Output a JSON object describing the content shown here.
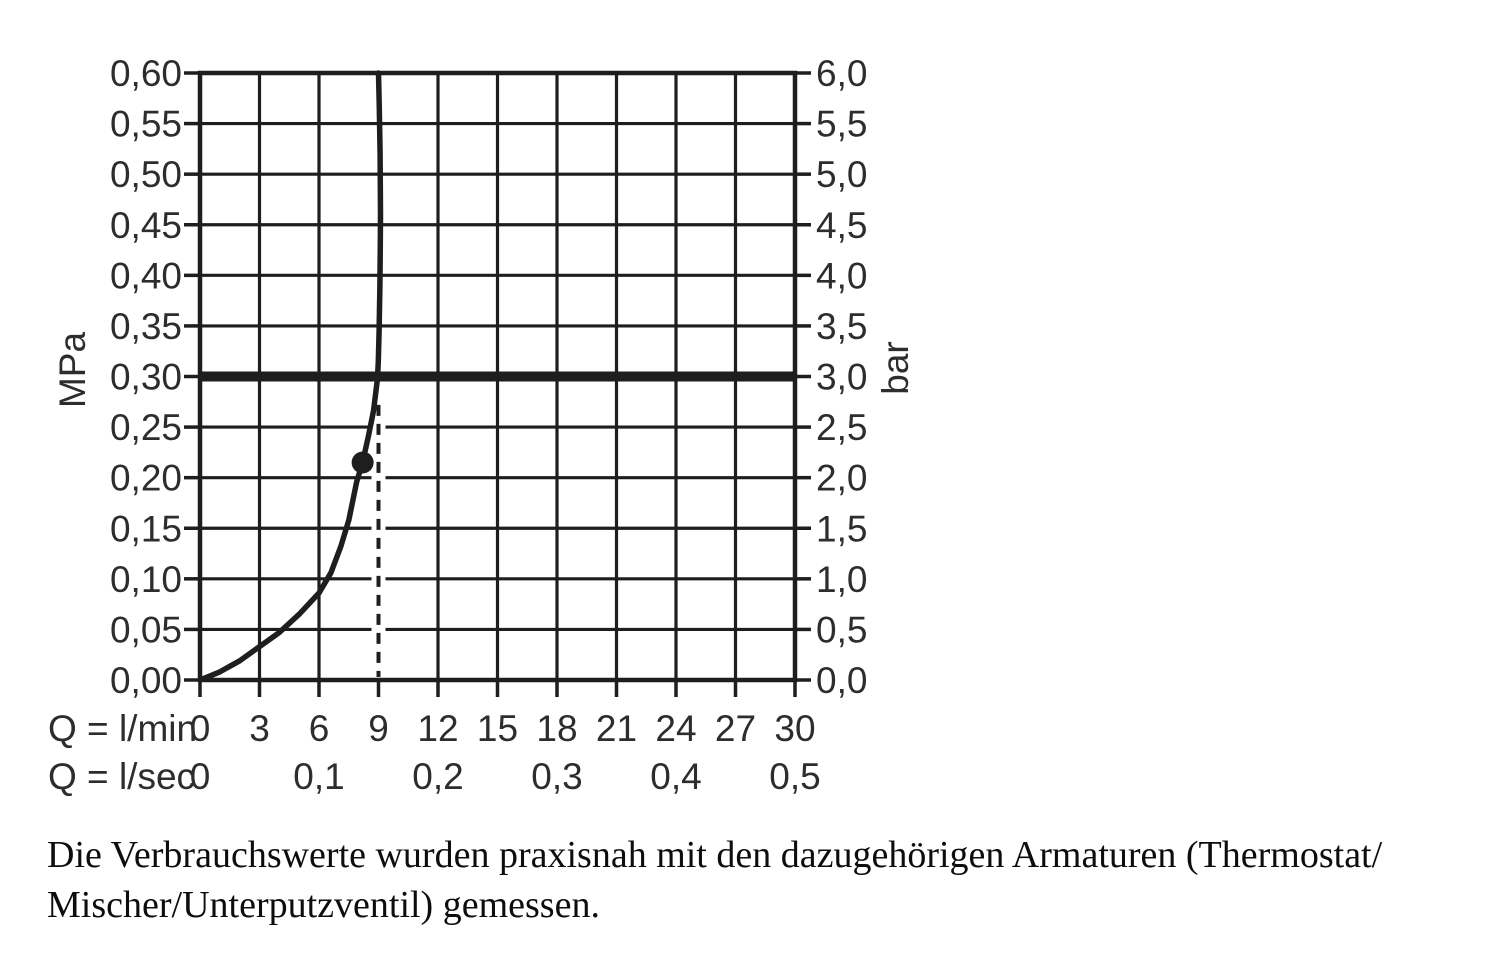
{
  "chart_data": {
    "type": "line",
    "description": "flow-rate-vs-pressure-diagram",
    "grid": "on",
    "colors": {
      "line": "#1e1e1e",
      "text": "#2d2d2d",
      "background": "#ffffff"
    },
    "x_axis": {
      "range": [
        0,
        30
      ],
      "grid_step": 3,
      "rows": [
        {
          "label": "Q = l/min",
          "ticks": [
            {
              "v": 0,
              "t": "0"
            },
            {
              "v": 3,
              "t": "3"
            },
            {
              "v": 6,
              "t": "6"
            },
            {
              "v": 9,
              "t": "9"
            },
            {
              "v": 12,
              "t": "12"
            },
            {
              "v": 15,
              "t": "15"
            },
            {
              "v": 18,
              "t": "18"
            },
            {
              "v": 21,
              "t": "21"
            },
            {
              "v": 24,
              "t": "24"
            },
            {
              "v": 27,
              "t": "27"
            },
            {
              "v": 30,
              "t": "30"
            }
          ]
        },
        {
          "label": "Q = l/sec",
          "ticks": [
            {
              "v": 0,
              "t": "0"
            },
            {
              "v": 6,
              "t": "0,1"
            },
            {
              "v": 12,
              "t": "0,2"
            },
            {
              "v": 18,
              "t": "0,3"
            },
            {
              "v": 24,
              "t": "0,4"
            },
            {
              "v": 30,
              "t": "0,5"
            }
          ]
        }
      ]
    },
    "y_left": {
      "label": "MPa",
      "range": [
        0,
        0.6
      ],
      "grid_step": 0.05,
      "ticks": [
        {
          "v": 0.6,
          "t": "0,60"
        },
        {
          "v": 0.55,
          "t": "0,55"
        },
        {
          "v": 0.5,
          "t": "0,50"
        },
        {
          "v": 0.45,
          "t": "0,45"
        },
        {
          "v": 0.4,
          "t": "0,40"
        },
        {
          "v": 0.35,
          "t": "0,35"
        },
        {
          "v": 0.3,
          "t": "0,30"
        },
        {
          "v": 0.25,
          "t": "0,25"
        },
        {
          "v": 0.2,
          "t": "0,20"
        },
        {
          "v": 0.15,
          "t": "0,15"
        },
        {
          "v": 0.1,
          "t": "0,10"
        },
        {
          "v": 0.05,
          "t": "0,05"
        },
        {
          "v": 0.0,
          "t": "0,00"
        }
      ]
    },
    "y_right": {
      "label": "bar",
      "range": [
        0,
        6
      ],
      "ticks": [
        {
          "v": 6.0,
          "t": "6,0"
        },
        {
          "v": 5.5,
          "t": "5,5"
        },
        {
          "v": 5.0,
          "t": "5,0"
        },
        {
          "v": 4.5,
          "t": "4,5"
        },
        {
          "v": 4.0,
          "t": "4,0"
        },
        {
          "v": 3.5,
          "t": "3,5"
        },
        {
          "v": 3.0,
          "t": "3,0"
        },
        {
          "v": 2.5,
          "t": "2,5"
        },
        {
          "v": 2.0,
          "t": "2,0"
        },
        {
          "v": 1.5,
          "t": "1,5"
        },
        {
          "v": 1.0,
          "t": "1,0"
        },
        {
          "v": 0.5,
          "t": "0,5"
        },
        {
          "v": 0.0,
          "t": "0,0"
        }
      ]
    },
    "series": [
      {
        "name": "flow-rate-curve",
        "points": [
          [
            0,
            0
          ],
          [
            1,
            0.008
          ],
          [
            2,
            0.019
          ],
          [
            3,
            0.033
          ],
          [
            4,
            0.047
          ],
          [
            5,
            0.065
          ],
          [
            6,
            0.086
          ],
          [
            6.6,
            0.106
          ],
          [
            7.1,
            0.132
          ],
          [
            7.5,
            0.158
          ],
          [
            7.9,
            0.196
          ],
          [
            8.2,
            0.215
          ],
          [
            8.5,
            0.242
          ],
          [
            8.75,
            0.266
          ],
          [
            8.95,
            0.298
          ],
          [
            8.99,
            0.315
          ],
          [
            9.03,
            0.345
          ],
          [
            9.07,
            0.39
          ],
          [
            9.09,
            0.43
          ],
          [
            9.1,
            0.46
          ],
          [
            9.08,
            0.52
          ],
          [
            9.04,
            0.565
          ],
          [
            9.0,
            0.6
          ]
        ]
      }
    ],
    "marker_point": {
      "x": 8.2,
      "y": 0.215
    },
    "pressure_reference_line": {
      "y": 0.3
    },
    "dashed_flow_line": {
      "x": 9,
      "y_top": 0.272
    }
  },
  "caption": {
    "lines": [
      "Die Verbrauchswerte wurden praxisnah mit den dazugehörigen Armaturen (Thermostat/",
      "Mischer/Unterputzventil) gemessen."
    ]
  }
}
